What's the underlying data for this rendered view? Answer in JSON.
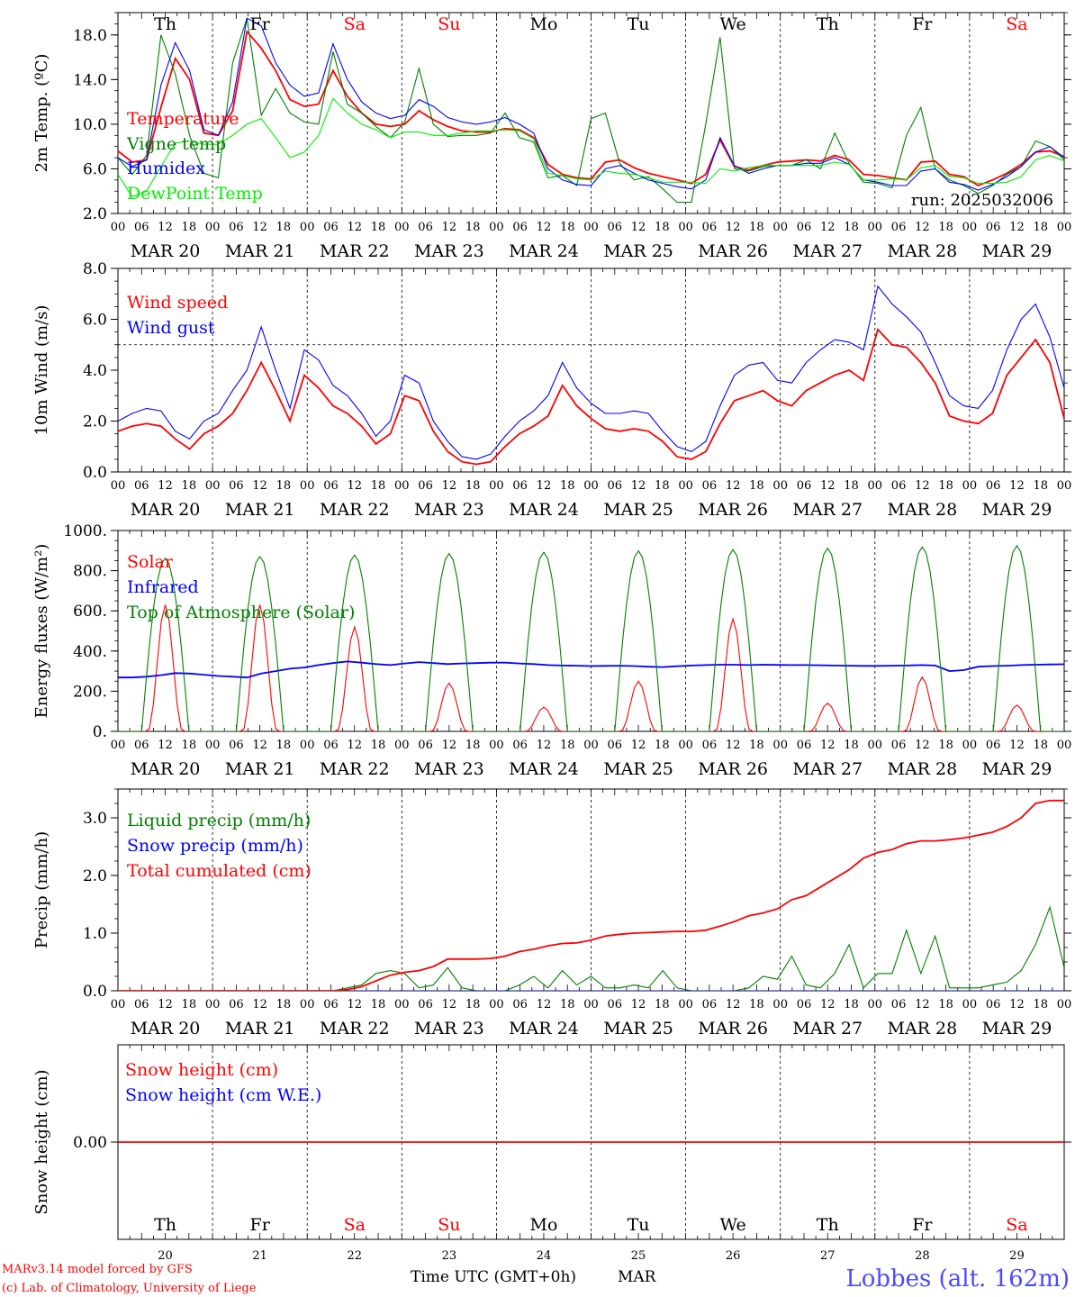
{
  "colors": {
    "red": "#ff0000",
    "green": "#008000",
    "blue": "#0000ff",
    "lime": "#00ee00",
    "grid": "#000000",
    "footer_blue": "#4a4aff"
  },
  "x_axis": {
    "hour_ticks": [
      "00",
      "06",
      "12",
      "18"
    ],
    "end_tick": "00",
    "days": [
      "MAR 20",
      "MAR 21",
      "MAR 22",
      "MAR 23",
      "MAR 24",
      "MAR 25",
      "MAR 26",
      "MAR 27",
      "MAR 28",
      "MAR 29"
    ],
    "weekdays": [
      {
        "label": "Th",
        "weekend": false
      },
      {
        "label": "Fr",
        "weekend": false
      },
      {
        "label": "Sa",
        "weekend": true
      },
      {
        "label": "Su",
        "weekend": true
      },
      {
        "label": "Mo",
        "weekend": false
      },
      {
        "label": "Tu",
        "weekend": false
      },
      {
        "label": "We",
        "weekend": false
      },
      {
        "label": "Th",
        "weekend": false
      },
      {
        "label": "Fr",
        "weekend": false
      },
      {
        "label": "Sa",
        "weekend": true
      }
    ],
    "day_numbers": [
      "20",
      "21",
      "22",
      "23",
      "24",
      "25",
      "26",
      "27",
      "28",
      "29"
    ],
    "time_label": "Time UTC (GMT+0h)",
    "month_label": "MAR"
  },
  "footer": {
    "model": "MARv3.14 model forced by GFS",
    "copyright": "(c) Lab. of Climatology, University of Liege",
    "station": "Lobbes (alt. 162m)"
  },
  "chart_data": [
    {
      "type": "line",
      "id": "temp",
      "ylabel": "2m Temp. (ºC)",
      "ylim": [
        2,
        20
      ],
      "yticks": [
        "2.0",
        "6.0",
        "10.0",
        "14.0",
        "18.0"
      ],
      "ytick_values": [
        2,
        6,
        10,
        14,
        18
      ],
      "annotation": "run: 2025032006",
      "series": [
        {
          "name": "Temperature",
          "color": "#ff0000",
          "values": [
            7.6,
            6.6,
            6.8,
            11.5,
            15.9,
            14.0,
            9.2,
            9.0,
            11.2,
            18.3,
            16.8,
            14.8,
            12.2,
            11.6,
            11.8,
            14.8,
            12.5,
            11.0,
            10.0,
            9.8,
            10.0,
            11.2,
            10.4,
            9.8,
            9.4,
            9.3,
            9.3,
            9.6,
            9.5,
            8.8,
            6.4,
            5.5,
            5.2,
            5.1,
            6.6,
            6.8,
            6.1,
            5.6,
            5.3,
            5.0,
            4.7,
            5.5,
            8.6,
            6.2,
            5.9,
            6.3,
            6.6,
            6.7,
            6.8,
            6.7,
            7.2,
            6.8,
            5.5,
            5.4,
            5.2,
            5.0,
            6.6,
            6.7,
            5.5,
            5.3,
            4.5,
            5.0,
            5.6,
            6.4,
            7.5,
            7.6,
            7.1
          ]
        },
        {
          "name": "Vigne temp",
          "color": "#008000",
          "values": [
            7.0,
            5.5,
            7.2,
            18.0,
            14.5,
            9.0,
            5.6,
            5.2,
            15.5,
            19.5,
            10.8,
            13.2,
            11.0,
            10.2,
            10.0,
            16.5,
            11.8,
            11.0,
            9.8,
            8.8,
            10.2,
            15.0,
            10.0,
            8.9,
            9.0,
            9.0,
            9.2,
            11.0,
            8.8,
            8.4,
            5.2,
            5.4,
            4.5,
            10.5,
            11.0,
            6.5,
            5.0,
            5.3,
            4.2,
            3.0,
            3.0,
            10.0,
            17.8,
            6.0,
            5.8,
            6.2,
            6.3,
            6.3,
            6.8,
            6.0,
            9.2,
            6.5,
            4.8,
            4.7,
            4.3,
            9.0,
            11.5,
            6.0,
            5.0,
            4.5,
            3.8,
            4.5,
            5.5,
            6.2,
            8.5,
            8.0,
            6.8
          ]
        },
        {
          "name": "Humidex",
          "color": "#0000ff",
          "values": [
            7.0,
            6.2,
            6.8,
            13.5,
            17.3,
            14.8,
            9.5,
            9.0,
            12.0,
            19.5,
            18.8,
            15.5,
            13.5,
            12.5,
            12.8,
            17.2,
            14.0,
            12.0,
            11.0,
            10.5,
            10.8,
            12.2,
            11.6,
            10.6,
            10.2,
            10.0,
            10.2,
            10.6,
            10.0,
            9.2,
            6.0,
            5.0,
            4.6,
            4.5,
            6.0,
            6.3,
            5.6,
            5.0,
            4.7,
            4.4,
            4.2,
            5.0,
            8.8,
            6.3,
            5.6,
            6.0,
            6.3,
            6.3,
            6.5,
            6.5,
            7.0,
            6.4,
            5.0,
            4.8,
            4.5,
            4.5,
            5.8,
            6.0,
            4.8,
            4.6,
            4.1,
            4.6,
            5.3,
            6.2,
            7.5,
            8.0,
            7.0
          ]
        },
        {
          "name": "DewPoint Temp",
          "color": "#00ee00",
          "values": [
            5.5,
            3.5,
            4.0,
            6.2,
            8.3,
            8.5,
            8.2,
            8.2,
            9.0,
            10.0,
            10.5,
            8.8,
            7.0,
            7.5,
            9.0,
            12.3,
            11.0,
            10.0,
            9.5,
            8.8,
            9.3,
            9.3,
            9.0,
            9.0,
            9.2,
            9.4,
            9.4,
            9.5,
            9.4,
            8.7,
            5.6,
            5.4,
            5.1,
            5.0,
            5.8,
            5.6,
            5.5,
            5.2,
            4.8,
            4.8,
            4.8,
            4.7,
            6.0,
            5.8,
            6.1,
            6.3,
            6.3,
            6.3,
            6.3,
            6.3,
            6.6,
            6.4,
            5.0,
            5.0,
            5.1,
            5.0,
            6.1,
            6.3,
            5.3,
            5.2,
            4.7,
            4.7,
            4.8,
            5.3,
            6.8,
            7.2,
            6.7
          ]
        }
      ]
    },
    {
      "type": "line",
      "id": "wind",
      "ylabel": "10m Wind (m/s)",
      "ylim": [
        0,
        8
      ],
      "yticks": [
        "0.0",
        "2.0",
        "4.0",
        "6.0",
        "8.0"
      ],
      "ytick_values": [
        0,
        2,
        4,
        6,
        8
      ],
      "reference_line": 5,
      "series": [
        {
          "name": "Wind speed",
          "color": "#ff0000",
          "values": [
            1.6,
            1.8,
            1.9,
            1.8,
            1.3,
            0.9,
            1.5,
            1.8,
            2.3,
            3.2,
            4.3,
            3.2,
            2.0,
            3.8,
            3.3,
            2.6,
            2.3,
            1.8,
            1.1,
            1.5,
            3.0,
            2.8,
            1.6,
            0.8,
            0.4,
            0.3,
            0.4,
            1.0,
            1.5,
            1.8,
            2.2,
            3.4,
            2.6,
            2.1,
            1.7,
            1.6,
            1.7,
            1.6,
            1.2,
            0.6,
            0.5,
            0.8,
            1.9,
            2.8,
            3.0,
            3.2,
            2.8,
            2.6,
            3.2,
            3.5,
            3.8,
            4.0,
            3.6,
            5.6,
            5.0,
            4.9,
            4.3,
            3.5,
            2.2,
            2.0,
            1.9,
            2.3,
            3.8,
            4.5,
            5.2,
            4.3,
            2.1
          ]
        },
        {
          "name": "Wind gust",
          "color": "#0000ff",
          "values": [
            2.0,
            2.3,
            2.5,
            2.4,
            1.6,
            1.3,
            2.0,
            2.3,
            3.2,
            4.0,
            5.7,
            4.0,
            2.5,
            4.8,
            4.4,
            3.4,
            3.0,
            2.3,
            1.4,
            2.0,
            3.8,
            3.5,
            2.0,
            1.2,
            0.6,
            0.5,
            0.7,
            1.4,
            2.0,
            2.4,
            3.0,
            4.3,
            3.3,
            2.7,
            2.3,
            2.3,
            2.4,
            2.3,
            1.6,
            1.0,
            0.8,
            1.2,
            2.6,
            3.8,
            4.2,
            4.3,
            3.6,
            3.5,
            4.3,
            4.8,
            5.2,
            5.1,
            4.8,
            7.3,
            6.6,
            6.1,
            5.5,
            4.3,
            3.0,
            2.6,
            2.5,
            3.2,
            4.8,
            6.0,
            6.6,
            5.3,
            3.3
          ]
        }
      ]
    },
    {
      "type": "line",
      "id": "energy",
      "ylabel": "Energy fluxes (W/m²)",
      "ylim": [
        0,
        1000
      ],
      "yticks": [
        "0.",
        "200.",
        "400.",
        "600.",
        "800.",
        "1000."
      ],
      "ytick_values": [
        0,
        200,
        400,
        600,
        800,
        1000
      ],
      "series": [
        {
          "name": "Solar",
          "color": "#ff0000",
          "peaks": [
            630,
            630,
            520,
            240,
            120,
            250,
            560,
            140,
            270,
            130
          ]
        },
        {
          "name": "Infrared",
          "color": "#0000ff",
          "values": [
            268,
            268,
            272,
            280,
            290,
            288,
            282,
            276,
            272,
            268,
            288,
            300,
            312,
            318,
            330,
            340,
            348,
            342,
            335,
            330,
            338,
            345,
            340,
            335,
            338,
            340,
            342,
            342,
            338,
            335,
            330,
            328,
            327,
            325,
            326,
            327,
            325,
            322,
            320,
            324,
            328,
            330,
            332,
            332,
            330,
            332,
            331,
            330,
            330,
            329,
            328,
            327,
            326,
            326,
            327,
            328,
            330,
            328,
            300,
            305,
            322,
            325,
            327,
            330,
            332,
            333,
            334
          ]
        },
        {
          "name": "Top of Atmosphere (Solar)",
          "color": "#008000",
          "peaks": [
            862,
            870,
            878,
            885,
            892,
            898,
            905,
            912,
            918,
            924
          ]
        }
      ]
    },
    {
      "type": "line",
      "id": "precip",
      "ylabel": "Precip (mm/h)",
      "ylim": [
        0,
        3.5
      ],
      "yticks": [
        "0.0",
        "1.0",
        "2.0",
        "3.0"
      ],
      "ytick_values": [
        0,
        1,
        2,
        3
      ],
      "series": [
        {
          "name": "Liquid precip (mm/h)",
          "color": "#008000",
          "values": [
            0,
            0,
            0,
            0,
            0,
            0,
            0,
            0,
            0,
            0,
            0,
            0,
            0,
            0,
            0,
            0,
            0.05,
            0.1,
            0.3,
            0.35,
            0.3,
            0.05,
            0.1,
            0.4,
            0.05,
            0,
            0,
            0,
            0.1,
            0.25,
            0.05,
            0.35,
            0.1,
            0.25,
            0.05,
            0.05,
            0.1,
            0.05,
            0.35,
            0.05,
            0,
            0,
            0,
            0,
            0.05,
            0.25,
            0.2,
            0.6,
            0.1,
            0.05,
            0.3,
            0.8,
            0.05,
            0.3,
            0.3,
            1.05,
            0.3,
            0.95,
            0.05,
            0.05,
            0.05,
            0.1,
            0.15,
            0.35,
            0.8,
            1.45,
            0.4
          ]
        },
        {
          "name": "Snow precip (mm/h)",
          "color": "#0000ff",
          "values": [
            0,
            0,
            0,
            0,
            0,
            0,
            0,
            0,
            0,
            0,
            0,
            0,
            0,
            0,
            0,
            0,
            0,
            0,
            0,
            0,
            0,
            0,
            0,
            0,
            0,
            0,
            0,
            0,
            0,
            0,
            0,
            0,
            0,
            0,
            0,
            0,
            0,
            0,
            0,
            0,
            0,
            0,
            0,
            0,
            0,
            0,
            0,
            0,
            0,
            0,
            0,
            0,
            0,
            0,
            0,
            0,
            0,
            0,
            0,
            0,
            0,
            0,
            0,
            0,
            0,
            0,
            0
          ]
        },
        {
          "name": "Total cumulated (cm)",
          "color": "#ff0000",
          "values": [
            0,
            0,
            0,
            0,
            0,
            0,
            0,
            0,
            0,
            0,
            0,
            0,
            0,
            0,
            0,
            0,
            0.02,
            0.07,
            0.17,
            0.27,
            0.32,
            0.35,
            0.42,
            0.55,
            0.55,
            0.55,
            0.56,
            0.6,
            0.68,
            0.72,
            0.78,
            0.82,
            0.83,
            0.88,
            0.95,
            0.98,
            1.0,
            1.01,
            1.02,
            1.03,
            1.03,
            1.05,
            1.12,
            1.2,
            1.3,
            1.35,
            1.42,
            1.58,
            1.65,
            1.8,
            1.95,
            2.1,
            2.3,
            2.4,
            2.45,
            2.55,
            2.6,
            2.6,
            2.62,
            2.65,
            2.7,
            2.75,
            2.85,
            3.0,
            3.25,
            3.3,
            3.3
          ]
        }
      ]
    },
    {
      "type": "line",
      "id": "snow",
      "ylabel": "Snow height (cm)",
      "ylim": [
        -1,
        1
      ],
      "yticks": [
        "0.00"
      ],
      "ytick_values": [
        0
      ],
      "series": [
        {
          "name": "Snow height (cm)",
          "color": "#ff0000",
          "values": [
            0,
            0
          ]
        },
        {
          "name": "Snow height (cm W.E.)",
          "color": "#0000ff",
          "values": []
        }
      ]
    }
  ]
}
